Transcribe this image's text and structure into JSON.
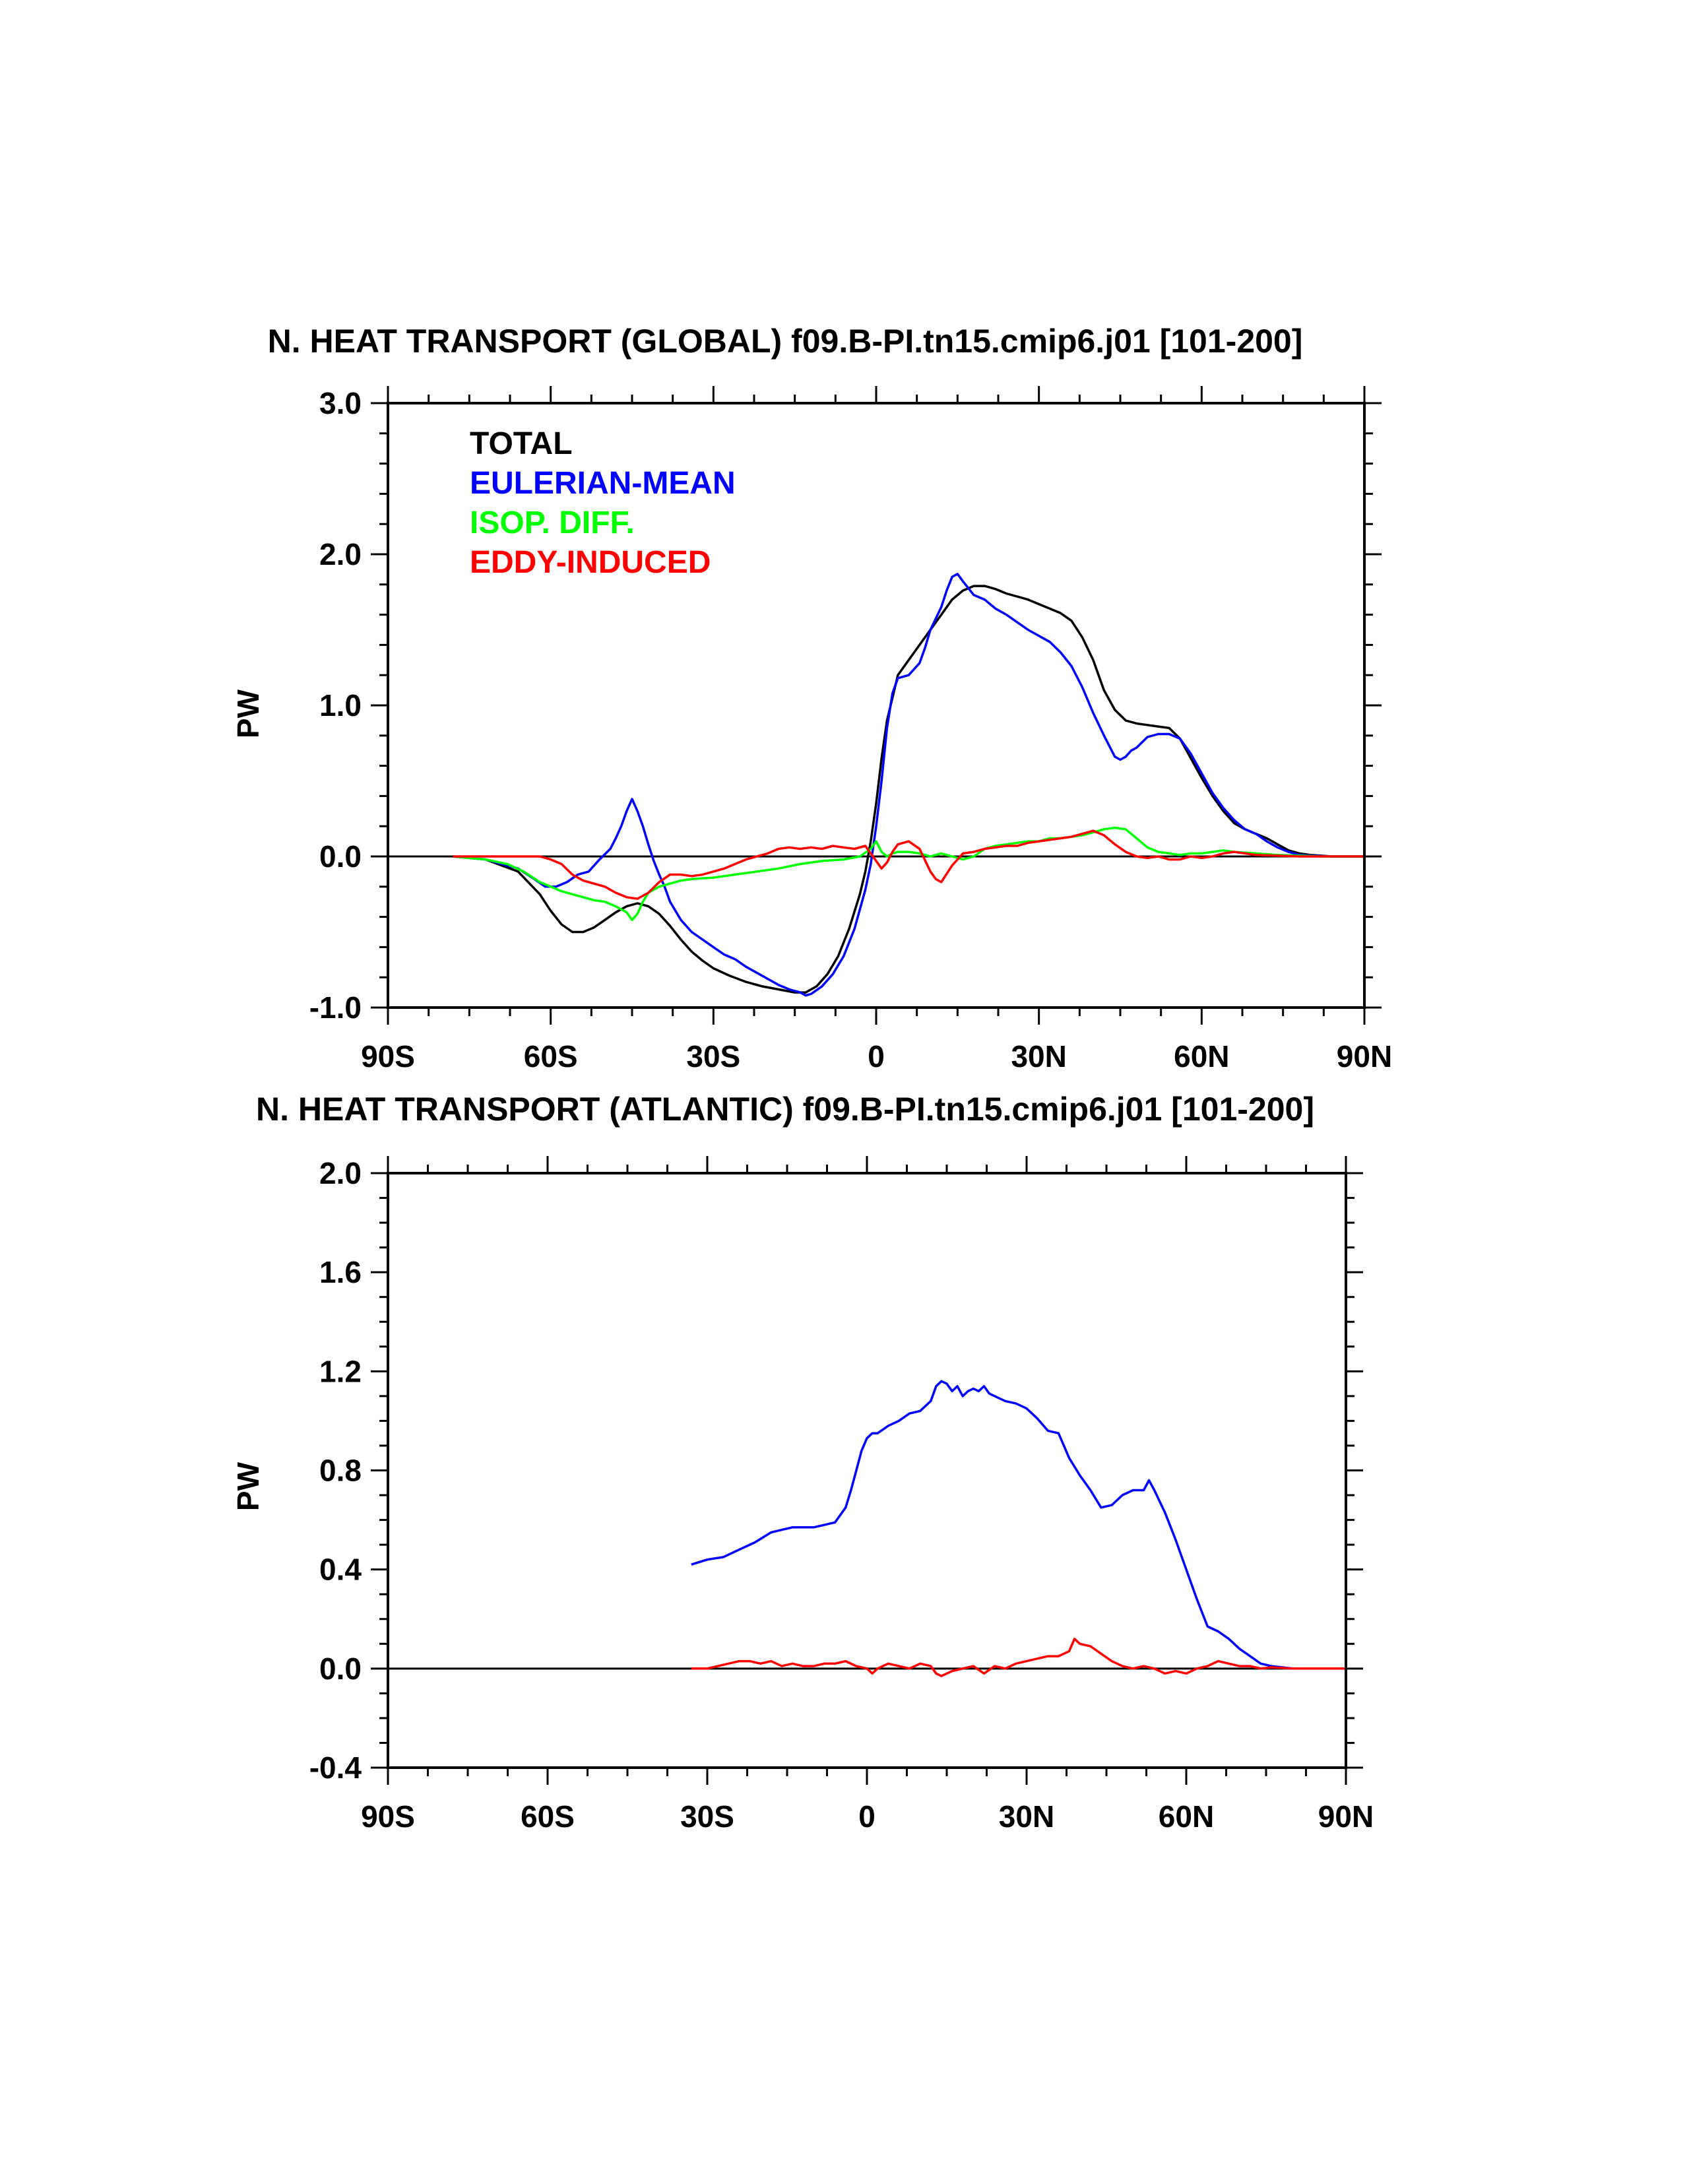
{
  "chart_data": [
    {
      "type": "line",
      "title": "N. HEAT TRANSPORT (GLOBAL) f09.B-PI.tn15.cmip6.j01 [101-200]",
      "xlabel": "",
      "ylabel": "PW",
      "xlim": [
        -90,
        90
      ],
      "ylim": [
        -1.0,
        3.0
      ],
      "x_ticks": [
        -90,
        -60,
        -30,
        0,
        30,
        60,
        90
      ],
      "x_tick_labels": [
        "90S",
        "60S",
        "30S",
        "0",
        "30N",
        "60N",
        "90N"
      ],
      "y_ticks": [
        -1.0,
        0.0,
        1.0,
        2.0,
        3.0
      ],
      "y_tick_labels": [
        "-1.0",
        "0.0",
        "1.0",
        "2.0",
        "3.0"
      ],
      "grid": false,
      "zero_line": true,
      "legend_position": "top-left",
      "series": [
        {
          "name": "TOTAL",
          "color": "#000000",
          "x": [
            -78,
            -72,
            -66,
            -62,
            -60,
            -58,
            -56,
            -54,
            -52,
            -50,
            -48,
            -46,
            -44,
            -42,
            -40,
            -38,
            -36,
            -34,
            -32,
            -30,
            -27,
            -24,
            -21,
            -18,
            -15,
            -13,
            -11,
            -9,
            -7,
            -5,
            -3,
            -2,
            -1,
            0,
            1,
            2,
            3,
            4,
            6,
            8,
            10,
            12,
            14,
            16,
            18,
            20,
            22,
            24,
            26,
            28,
            30,
            32,
            34,
            36,
            38,
            40,
            42,
            44,
            46,
            48,
            50,
            52,
            54,
            56,
            58,
            60,
            62,
            64,
            66,
            68,
            70,
            72,
            74,
            76,
            78,
            80,
            84,
            90
          ],
          "y": [
            0,
            -0.02,
            -0.1,
            -0.25,
            -0.36,
            -0.45,
            -0.5,
            -0.5,
            -0.47,
            -0.42,
            -0.37,
            -0.33,
            -0.31,
            -0.33,
            -0.38,
            -0.46,
            -0.55,
            -0.63,
            -0.69,
            -0.74,
            -0.79,
            -0.83,
            -0.86,
            -0.88,
            -0.9,
            -0.9,
            -0.86,
            -0.78,
            -0.66,
            -0.48,
            -0.25,
            -0.1,
            0.1,
            0.35,
            0.65,
            0.9,
            1.05,
            1.2,
            1.3,
            1.4,
            1.5,
            1.6,
            1.7,
            1.76,
            1.79,
            1.79,
            1.77,
            1.74,
            1.72,
            1.7,
            1.67,
            1.64,
            1.61,
            1.56,
            1.45,
            1.3,
            1.1,
            0.97,
            0.9,
            0.88,
            0.87,
            0.86,
            0.85,
            0.78,
            0.65,
            0.52,
            0.4,
            0.3,
            0.22,
            0.18,
            0.15,
            0.12,
            0.08,
            0.04,
            0.02,
            0.01,
            0,
            0
          ]
        },
        {
          "name": "EULERIAN-MEAN",
          "color": "#0000ff",
          "x": [
            -78,
            -72,
            -66,
            -63,
            -61,
            -59,
            -57,
            -55,
            -53,
            -51,
            -49,
            -48,
            -47,
            -46,
            -45,
            -44,
            -43,
            -42,
            -41,
            -40,
            -39,
            -38,
            -36,
            -34,
            -32,
            -30,
            -28,
            -26,
            -24,
            -22,
            -20,
            -18,
            -16,
            -14,
            -13,
            -12,
            -10,
            -8,
            -6,
            -4,
            -2,
            -1,
            0,
            1,
            2,
            3,
            4,
            6,
            8,
            9,
            10,
            12,
            13,
            14,
            15,
            16,
            18,
            20,
            22,
            24,
            26,
            28,
            30,
            32,
            34,
            36,
            38,
            40,
            42,
            44,
            45,
            46,
            47,
            48,
            50,
            52,
            54,
            56,
            58,
            60,
            62,
            64,
            66,
            68,
            70,
            72,
            74,
            76,
            78,
            80,
            84,
            90
          ],
          "y": [
            0,
            -0.02,
            -0.08,
            -0.15,
            -0.2,
            -0.2,
            -0.17,
            -0.12,
            -0.1,
            -0.02,
            0.05,
            0.12,
            0.2,
            0.3,
            0.38,
            0.3,
            0.2,
            0.08,
            -0.03,
            -0.12,
            -0.2,
            -0.3,
            -0.42,
            -0.5,
            -0.55,
            -0.6,
            -0.65,
            -0.68,
            -0.73,
            -0.77,
            -0.81,
            -0.85,
            -0.88,
            -0.9,
            -0.92,
            -0.91,
            -0.86,
            -0.78,
            -0.66,
            -0.48,
            -0.22,
            -0.05,
            0.2,
            0.5,
            0.85,
            1.08,
            1.18,
            1.2,
            1.28,
            1.38,
            1.5,
            1.65,
            1.76,
            1.85,
            1.87,
            1.82,
            1.73,
            1.7,
            1.64,
            1.6,
            1.55,
            1.5,
            1.46,
            1.42,
            1.35,
            1.26,
            1.12,
            0.95,
            0.8,
            0.66,
            0.64,
            0.66,
            0.7,
            0.72,
            0.79,
            0.81,
            0.81,
            0.78,
            0.68,
            0.55,
            0.42,
            0.32,
            0.24,
            0.18,
            0.15,
            0.1,
            0.06,
            0.03,
            0.01,
            0.005,
            0,
            0
          ]
        },
        {
          "name": "ISOP. DIFF.",
          "color": "#00ff00",
          "x": [
            -78,
            -72,
            -68,
            -65,
            -62,
            -60,
            -58,
            -56,
            -54,
            -52,
            -50,
            -48,
            -46,
            -45,
            -44,
            -43,
            -42,
            -40,
            -38,
            -36,
            -34,
            -30,
            -26,
            -22,
            -18,
            -14,
            -10,
            -6,
            -3,
            -1,
            0,
            1,
            2,
            3,
            4,
            6,
            8,
            10,
            12,
            14,
            16,
            18,
            20,
            22,
            24,
            26,
            28,
            30,
            32,
            34,
            36,
            38,
            40,
            42,
            44,
            46,
            48,
            50,
            52,
            54,
            56,
            58,
            60,
            62,
            64,
            66,
            70,
            74,
            78,
            82,
            86,
            90
          ],
          "y": [
            0,
            -0.02,
            -0.05,
            -0.1,
            -0.17,
            -0.2,
            -0.23,
            -0.25,
            -0.27,
            -0.29,
            -0.3,
            -0.33,
            -0.37,
            -0.42,
            -0.38,
            -0.3,
            -0.24,
            -0.2,
            -0.18,
            -0.16,
            -0.15,
            -0.14,
            -0.12,
            -0.1,
            -0.08,
            -0.05,
            -0.03,
            -0.02,
            0.0,
            0.05,
            0.1,
            0.03,
            0.0,
            0.02,
            0.03,
            0.03,
            0.02,
            0.0,
            0.02,
            0.0,
            -0.02,
            0.0,
            0.05,
            0.07,
            0.08,
            0.09,
            0.1,
            0.1,
            0.12,
            0.12,
            0.13,
            0.14,
            0.16,
            0.18,
            0.19,
            0.18,
            0.12,
            0.06,
            0.03,
            0.02,
            0.01,
            0.02,
            0.02,
            0.03,
            0.04,
            0.03,
            0.02,
            0.01,
            0.005,
            0,
            0,
            0
          ]
        },
        {
          "name": "EDDY-INDUCED",
          "color": "#ff0000",
          "x": [
            -78,
            -72,
            -66,
            -62,
            -60,
            -58,
            -56,
            -54,
            -52,
            -50,
            -48,
            -46,
            -44,
            -42,
            -40,
            -38,
            -36,
            -34,
            -32,
            -30,
            -28,
            -26,
            -24,
            -22,
            -20,
            -18,
            -16,
            -14,
            -12,
            -10,
            -8,
            -6,
            -4,
            -2,
            0,
            1,
            2,
            3,
            4,
            6,
            8,
            10,
            11,
            12,
            14,
            16,
            18,
            20,
            22,
            24,
            26,
            28,
            30,
            32,
            34,
            36,
            38,
            40,
            42,
            44,
            46,
            48,
            50,
            52,
            54,
            56,
            58,
            60,
            62,
            64,
            66,
            70,
            74,
            78,
            82,
            86,
            90
          ],
          "y": [
            0,
            0,
            0,
            0,
            -0.02,
            -0.05,
            -0.12,
            -0.16,
            -0.18,
            -0.2,
            -0.24,
            -0.27,
            -0.28,
            -0.24,
            -0.17,
            -0.12,
            -0.12,
            -0.13,
            -0.12,
            -0.1,
            -0.08,
            -0.05,
            -0.02,
            0.0,
            0.02,
            0.05,
            0.06,
            0.05,
            0.06,
            0.05,
            0.07,
            0.06,
            0.05,
            0.07,
            -0.03,
            -0.08,
            -0.04,
            0.03,
            0.08,
            0.1,
            0.05,
            -0.1,
            -0.15,
            -0.17,
            -0.06,
            0.02,
            0.03,
            0.05,
            0.06,
            0.07,
            0.07,
            0.09,
            0.1,
            0.11,
            0.12,
            0.13,
            0.15,
            0.17,
            0.14,
            0.08,
            0.03,
            0.0,
            -0.01,
            0.0,
            -0.02,
            -0.02,
            0.0,
            -0.01,
            0.0,
            0.02,
            0.03,
            0.01,
            0.005,
            0,
            0,
            0,
            0
          ]
        }
      ]
    },
    {
      "type": "line",
      "title": "N. HEAT TRANSPORT (ATLANTIC) f09.B-PI.tn15.cmip6.j01 [101-200]",
      "xlabel": "",
      "ylabel": "PW",
      "xlim": [
        -90,
        90
      ],
      "ylim": [
        -0.4,
        2.0
      ],
      "x_ticks": [
        -90,
        -60,
        -30,
        0,
        30,
        60,
        90
      ],
      "x_tick_labels": [
        "90S",
        "60S",
        "30S",
        "0",
        "30N",
        "60N",
        "90N"
      ],
      "y_ticks": [
        -0.4,
        0.0,
        0.4,
        0.8,
        1.2,
        1.6,
        2.0
      ],
      "y_tick_labels": [
        "-0.4",
        "0.0",
        "0.4",
        "0.8",
        "1.2",
        "1.6",
        "2.0"
      ],
      "grid": false,
      "zero_line": true,
      "series": [
        {
          "name": "EULERIAN-MEAN",
          "color": "#0000ff",
          "x": [
            -33,
            -30,
            -27,
            -24,
            -21,
            -18,
            -16,
            -14,
            -12,
            -10,
            -8,
            -6,
            -4,
            -3,
            -2,
            -1,
            0,
            1,
            2,
            4,
            6,
            8,
            10,
            12,
            13,
            14,
            15,
            16,
            17,
            18,
            19,
            20,
            21,
            22,
            23,
            24,
            26,
            28,
            30,
            32,
            34,
            36,
            37,
            38,
            40,
            42,
            44,
            46,
            48,
            50,
            52,
            53,
            54,
            56,
            58,
            60,
            62,
            64,
            66,
            68,
            70,
            72,
            74,
            76,
            78,
            80,
            84,
            90
          ],
          "y": [
            0.42,
            0.44,
            0.45,
            0.48,
            0.51,
            0.55,
            0.56,
            0.57,
            0.57,
            0.57,
            0.58,
            0.59,
            0.65,
            0.72,
            0.8,
            0.88,
            0.93,
            0.95,
            0.95,
            0.98,
            1.0,
            1.03,
            1.04,
            1.08,
            1.14,
            1.16,
            1.15,
            1.12,
            1.14,
            1.1,
            1.12,
            1.13,
            1.12,
            1.14,
            1.11,
            1.1,
            1.08,
            1.07,
            1.05,
            1.01,
            0.96,
            0.95,
            0.9,
            0.85,
            0.78,
            0.72,
            0.65,
            0.66,
            0.7,
            0.72,
            0.72,
            0.76,
            0.72,
            0.63,
            0.52,
            0.4,
            0.28,
            0.17,
            0.15,
            0.12,
            0.08,
            0.05,
            0.02,
            0.01,
            0.005,
            0,
            0,
            0
          ]
        },
        {
          "name": "EDDY-INDUCED",
          "color": "#ff0000",
          "x": [
            -33,
            -30,
            -28,
            -26,
            -24,
            -22,
            -20,
            -18,
            -16,
            -14,
            -12,
            -10,
            -8,
            -6,
            -4,
            -2,
            0,
            1,
            2,
            4,
            6,
            8,
            10,
            12,
            13,
            14,
            16,
            18,
            20,
            22,
            24,
            26,
            28,
            30,
            32,
            34,
            36,
            38,
            39,
            40,
            42,
            44,
            46,
            48,
            50,
            52,
            54,
            56,
            58,
            60,
            62,
            64,
            66,
            68,
            70,
            72,
            74,
            76,
            80,
            84,
            90
          ],
          "y": [
            0,
            0,
            0.01,
            0.02,
            0.03,
            0.03,
            0.02,
            0.03,
            0.01,
            0.02,
            0.01,
            0.01,
            0.02,
            0.02,
            0.03,
            0.01,
            0.0,
            -0.02,
            0.0,
            0.02,
            0.01,
            0.0,
            0.02,
            0.01,
            -0.02,
            -0.03,
            -0.01,
            0.0,
            0.01,
            -0.02,
            0.01,
            0.0,
            0.02,
            0.03,
            0.04,
            0.05,
            0.05,
            0.07,
            0.12,
            0.1,
            0.09,
            0.06,
            0.03,
            0.01,
            0.0,
            0.01,
            0.0,
            -0.02,
            -0.01,
            -0.02,
            0.0,
            0.01,
            0.03,
            0.02,
            0.01,
            0.01,
            0.0,
            0.005,
            0,
            0,
            0
          ]
        }
      ]
    }
  ]
}
